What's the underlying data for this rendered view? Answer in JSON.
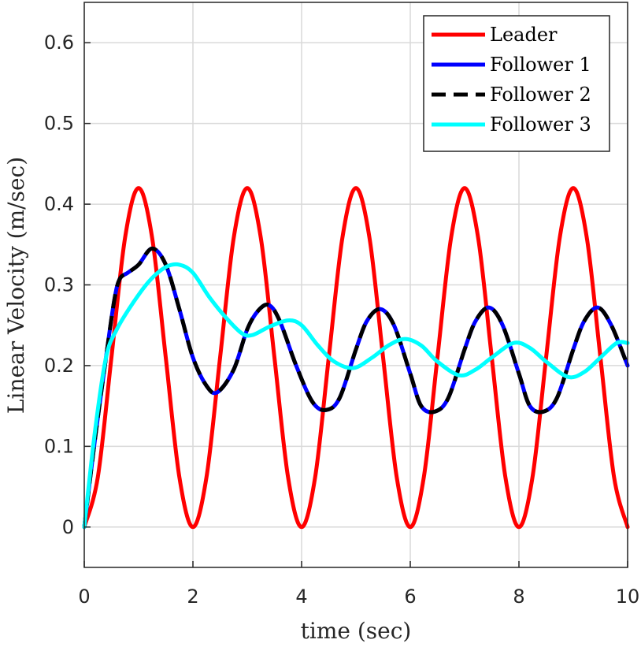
{
  "chart_data": {
    "type": "line",
    "xlabel": "time (sec)",
    "ylabel": "Linear Velocity (m/sec)",
    "xlim": [
      0,
      10
    ],
    "ylim": [
      -0.05,
      0.65
    ],
    "xticks": [
      0,
      2,
      4,
      6,
      8,
      10
    ],
    "yticks": [
      0,
      0.1,
      0.2,
      0.3,
      0.4,
      0.5,
      0.6
    ],
    "grid": true,
    "legend_position": "top-right",
    "series": [
      {
        "name": "Leader",
        "color": "#ff0000",
        "dash": "solid",
        "x": [
          0,
          0.25,
          0.5,
          0.75,
          1,
          1.25,
          1.5,
          1.75,
          2,
          2.25,
          2.5,
          2.75,
          3,
          3.25,
          3.5,
          3.75,
          4,
          4.25,
          4.5,
          4.75,
          5,
          5.25,
          5.5,
          5.75,
          6,
          6.25,
          6.5,
          6.75,
          7,
          7.25,
          7.5,
          7.75,
          8,
          8.25,
          8.5,
          8.75,
          9,
          9.25,
          9.5,
          9.75,
          10
        ],
        "y": [
          0,
          0.062,
          0.21,
          0.358,
          0.42,
          0.358,
          0.21,
          0.062,
          0,
          0.062,
          0.21,
          0.358,
          0.42,
          0.358,
          0.21,
          0.062,
          0,
          0.062,
          0.21,
          0.358,
          0.42,
          0.358,
          0.21,
          0.062,
          0,
          0.062,
          0.21,
          0.358,
          0.42,
          0.358,
          0.21,
          0.062,
          0,
          0.062,
          0.21,
          0.358,
          0.42,
          0.358,
          0.21,
          0.062,
          0
        ]
      },
      {
        "name": "Follower 1",
        "color": "#0000ff",
        "dash": "solid",
        "x": [
          0,
          0.2,
          0.4,
          0.55,
          0.65,
          0.8,
          1.0,
          1.25,
          1.5,
          1.75,
          2.0,
          2.25,
          2.45,
          2.75,
          3.0,
          3.2,
          3.4,
          3.6,
          3.9,
          4.2,
          4.45,
          4.7,
          5.0,
          5.2,
          5.45,
          5.7,
          6.0,
          6.2,
          6.45,
          6.7,
          7.0,
          7.2,
          7.45,
          7.7,
          8.0,
          8.2,
          8.45,
          8.7,
          9.0,
          9.2,
          9.45,
          9.7,
          10.0
        ],
        "y": [
          0,
          0.11,
          0.21,
          0.28,
          0.307,
          0.315,
          0.325,
          0.345,
          0.325,
          0.27,
          0.21,
          0.175,
          0.167,
          0.195,
          0.245,
          0.268,
          0.275,
          0.255,
          0.2,
          0.155,
          0.145,
          0.16,
          0.22,
          0.255,
          0.27,
          0.25,
          0.19,
          0.15,
          0.143,
          0.16,
          0.22,
          0.255,
          0.272,
          0.25,
          0.19,
          0.15,
          0.143,
          0.16,
          0.22,
          0.255,
          0.272,
          0.25,
          0.2
        ]
      },
      {
        "name": "Follower 2",
        "color": "#000000",
        "dash": "dashed",
        "x": [
          0,
          0.2,
          0.4,
          0.55,
          0.65,
          0.8,
          1.0,
          1.25,
          1.5,
          1.75,
          2.0,
          2.25,
          2.45,
          2.75,
          3.0,
          3.2,
          3.4,
          3.6,
          3.9,
          4.2,
          4.45,
          4.7,
          5.0,
          5.2,
          5.45,
          5.7,
          6.0,
          6.2,
          6.45,
          6.7,
          7.0,
          7.2,
          7.45,
          7.7,
          8.0,
          8.2,
          8.45,
          8.7,
          9.0,
          9.2,
          9.45,
          9.7,
          10.0
        ],
        "y": [
          0,
          0.11,
          0.21,
          0.28,
          0.307,
          0.315,
          0.325,
          0.345,
          0.325,
          0.27,
          0.21,
          0.175,
          0.167,
          0.195,
          0.245,
          0.268,
          0.275,
          0.255,
          0.2,
          0.155,
          0.145,
          0.16,
          0.22,
          0.255,
          0.27,
          0.25,
          0.19,
          0.15,
          0.143,
          0.16,
          0.22,
          0.255,
          0.272,
          0.25,
          0.19,
          0.15,
          0.143,
          0.16,
          0.22,
          0.255,
          0.272,
          0.25,
          0.2
        ]
      },
      {
        "name": "Follower 3",
        "color": "#00ffff",
        "dash": "solid",
        "x": [
          0,
          0.2,
          0.4,
          0.6,
          0.9,
          1.2,
          1.5,
          1.75,
          2.0,
          2.3,
          2.6,
          2.9,
          3.1,
          3.4,
          3.75,
          4.0,
          4.3,
          4.6,
          4.95,
          5.3,
          5.6,
          5.9,
          6.2,
          6.5,
          6.9,
          7.2,
          7.5,
          7.9,
          8.2,
          8.5,
          8.9,
          9.2,
          9.5,
          9.8,
          10.0
        ],
        "y": [
          0,
          0.12,
          0.21,
          0.245,
          0.278,
          0.305,
          0.322,
          0.325,
          0.315,
          0.285,
          0.26,
          0.24,
          0.238,
          0.248,
          0.256,
          0.25,
          0.225,
          0.205,
          0.197,
          0.21,
          0.225,
          0.233,
          0.225,
          0.205,
          0.188,
          0.195,
          0.21,
          0.228,
          0.222,
          0.205,
          0.186,
          0.192,
          0.21,
          0.228,
          0.228
        ]
      }
    ]
  }
}
